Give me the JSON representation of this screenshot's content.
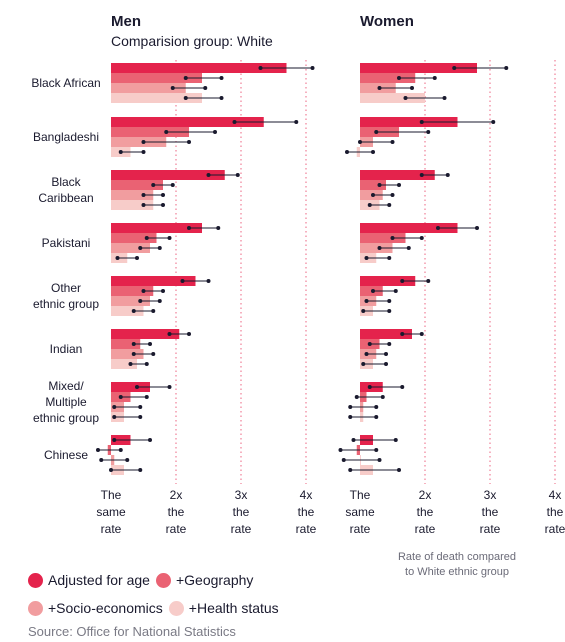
{
  "colors": {
    "adjusted_for_age": "#e4234c",
    "geography": "#ea6273",
    "socio_economics": "#f19d9f",
    "health_status": "#f7ccc9",
    "error_bar": "#1a1a2e",
    "gridline": "#e4234c"
  },
  "legend": {
    "items": [
      {
        "label": "Adjusted for age",
        "color": "#e4234c"
      },
      {
        "label": "+Geography",
        "color": "#ea6273"
      },
      {
        "label": "+Socio-economics",
        "color": "#f19d9f"
      },
      {
        "label": "+Health status",
        "color": "#f7ccc9"
      }
    ]
  },
  "footer": {
    "source": "Source: Office for National Statistics",
    "note_line1": "Rate of death compared",
    "note_line2": "to White ethnic group"
  },
  "chart_data": [
    {
      "type": "bar",
      "title": "Men",
      "subtitle": "Comparision group: White",
      "xlim": [
        1,
        4
      ],
      "ticks": [
        {
          "value": 1,
          "lines": [
            "The",
            "same",
            "rate"
          ]
        },
        {
          "value": 2,
          "lines": [
            "2x",
            "the",
            "rate"
          ]
        },
        {
          "value": 3,
          "lines": [
            "3x",
            "the",
            "rate"
          ]
        },
        {
          "value": 4,
          "lines": [
            "4x",
            "the",
            "rate"
          ]
        }
      ],
      "series_names": [
        "Adjusted for age",
        "+Geography",
        "+Socio-economics",
        "+Health status"
      ],
      "categories": [
        {
          "label": [
            "Black African"
          ],
          "series": [
            {
              "value": 3.7,
              "lo": 3.3,
              "hi": 4.1
            },
            {
              "value": 2.4,
              "lo": 2.15,
              "hi": 2.7
            },
            {
              "value": 2.15,
              "lo": 1.95,
              "hi": 2.45
            },
            {
              "value": 2.4,
              "lo": 2.15,
              "hi": 2.7
            }
          ]
        },
        {
          "label": [
            "Bangladeshi"
          ],
          "series": [
            {
              "value": 3.35,
              "lo": 2.9,
              "hi": 3.85
            },
            {
              "value": 2.2,
              "lo": 1.85,
              "hi": 2.6
            },
            {
              "value": 1.85,
              "lo": 1.5,
              "hi": 2.2
            },
            {
              "value": 1.3,
              "lo": 1.15,
              "hi": 1.5
            }
          ]
        },
        {
          "label": [
            "Black",
            "Caribbean"
          ],
          "series": [
            {
              "value": 2.75,
              "lo": 2.5,
              "hi": 2.95
            },
            {
              "value": 1.8,
              "lo": 1.65,
              "hi": 1.95
            },
            {
              "value": 1.65,
              "lo": 1.5,
              "hi": 1.8
            },
            {
              "value": 1.65,
              "lo": 1.5,
              "hi": 1.8
            }
          ]
        },
        {
          "label": [
            "Pakistani"
          ],
          "series": [
            {
              "value": 2.4,
              "lo": 2.2,
              "hi": 2.65
            },
            {
              "value": 1.7,
              "lo": 1.55,
              "hi": 1.9
            },
            {
              "value": 1.6,
              "lo": 1.45,
              "hi": 1.75
            },
            {
              "value": 1.25,
              "lo": 1.1,
              "hi": 1.4
            }
          ]
        },
        {
          "label": [
            "Other",
            "ethnic group"
          ],
          "series": [
            {
              "value": 2.3,
              "lo": 2.1,
              "hi": 2.5
            },
            {
              "value": 1.65,
              "lo": 1.5,
              "hi": 1.8
            },
            {
              "value": 1.6,
              "lo": 1.45,
              "hi": 1.75
            },
            {
              "value": 1.5,
              "lo": 1.35,
              "hi": 1.65
            }
          ]
        },
        {
          "label": [
            "Indian"
          ],
          "series": [
            {
              "value": 2.05,
              "lo": 1.9,
              "hi": 2.2
            },
            {
              "value": 1.45,
              "lo": 1.35,
              "hi": 1.6
            },
            {
              "value": 1.5,
              "lo": 1.35,
              "hi": 1.65
            },
            {
              "value": 1.4,
              "lo": 1.3,
              "hi": 1.55
            }
          ]
        },
        {
          "label": [
            "Mixed/",
            "Multiple",
            "ethnic group"
          ],
          "series": [
            {
              "value": 1.6,
              "lo": 1.4,
              "hi": 1.9
            },
            {
              "value": 1.3,
              "lo": 1.15,
              "hi": 1.55
            },
            {
              "value": 1.2,
              "lo": 1.05,
              "hi": 1.45
            },
            {
              "value": 1.2,
              "lo": 1.05,
              "hi": 1.45
            }
          ]
        },
        {
          "label": [
            "Chinese"
          ],
          "series": [
            {
              "value": 1.3,
              "lo": 1.05,
              "hi": 1.6
            },
            {
              "value": 0.95,
              "lo": 0.8,
              "hi": 1.15
            },
            {
              "value": 1.05,
              "lo": 0.85,
              "hi": 1.25
            },
            {
              "value": 1.2,
              "lo": 1.0,
              "hi": 1.45
            }
          ]
        }
      ]
    },
    {
      "type": "bar",
      "title": "Women",
      "subtitle": "",
      "xlim": [
        1,
        4
      ],
      "ticks": [
        {
          "value": 1,
          "lines": [
            "The",
            "same",
            "rate"
          ]
        },
        {
          "value": 2,
          "lines": [
            "2x",
            "the",
            "rate"
          ]
        },
        {
          "value": 3,
          "lines": [
            "3x",
            "the",
            "rate"
          ]
        },
        {
          "value": 4,
          "lines": [
            "4x",
            "the",
            "rate"
          ]
        }
      ],
      "series_names": [
        "Adjusted for age",
        "+Geography",
        "+Socio-economics",
        "+Health status"
      ],
      "categories": [
        {
          "label": [
            "Black African"
          ],
          "series": [
            {
              "value": 2.8,
              "lo": 2.45,
              "hi": 3.25
            },
            {
              "value": 1.85,
              "lo": 1.6,
              "hi": 2.15
            },
            {
              "value": 1.55,
              "lo": 1.3,
              "hi": 1.8
            },
            {
              "value": 2.0,
              "lo": 1.7,
              "hi": 2.3
            }
          ]
        },
        {
          "label": [
            "Bangladeshi"
          ],
          "series": [
            {
              "value": 2.5,
              "lo": 1.95,
              "hi": 3.05
            },
            {
              "value": 1.6,
              "lo": 1.25,
              "hi": 2.05
            },
            {
              "value": 1.2,
              "lo": 1.0,
              "hi": 1.5
            },
            {
              "value": 0.95,
              "lo": 0.8,
              "hi": 1.2
            }
          ]
        },
        {
          "label": [
            "Black",
            "Caribbean"
          ],
          "series": [
            {
              "value": 2.15,
              "lo": 1.95,
              "hi": 2.35
            },
            {
              "value": 1.4,
              "lo": 1.3,
              "hi": 1.6
            },
            {
              "value": 1.35,
              "lo": 1.2,
              "hi": 1.5
            },
            {
              "value": 1.3,
              "lo": 1.15,
              "hi": 1.45
            }
          ]
        },
        {
          "label": [
            "Pakistani"
          ],
          "series": [
            {
              "value": 2.5,
              "lo": 2.2,
              "hi": 2.8
            },
            {
              "value": 1.7,
              "lo": 1.5,
              "hi": 1.95
            },
            {
              "value": 1.5,
              "lo": 1.3,
              "hi": 1.75
            },
            {
              "value": 1.25,
              "lo": 1.1,
              "hi": 1.45
            }
          ]
        },
        {
          "label": [
            "Other",
            "ethnic group"
          ],
          "series": [
            {
              "value": 1.85,
              "lo": 1.65,
              "hi": 2.05
            },
            {
              "value": 1.35,
              "lo": 1.2,
              "hi": 1.55
            },
            {
              "value": 1.25,
              "lo": 1.1,
              "hi": 1.45
            },
            {
              "value": 1.2,
              "lo": 1.05,
              "hi": 1.45
            }
          ]
        },
        {
          "label": [
            "Indian"
          ],
          "series": [
            {
              "value": 1.8,
              "lo": 1.65,
              "hi": 1.95
            },
            {
              "value": 1.3,
              "lo": 1.15,
              "hi": 1.45
            },
            {
              "value": 1.25,
              "lo": 1.1,
              "hi": 1.4
            },
            {
              "value": 1.2,
              "lo": 1.05,
              "hi": 1.4
            }
          ]
        },
        {
          "label": [
            "Mixed/",
            "Multiple",
            "ethnic group"
          ],
          "series": [
            {
              "value": 1.35,
              "lo": 1.15,
              "hi": 1.65
            },
            {
              "value": 1.1,
              "lo": 0.95,
              "hi": 1.35
            },
            {
              "value": 1.05,
              "lo": 0.85,
              "hi": 1.25
            },
            {
              "value": 1.05,
              "lo": 0.85,
              "hi": 1.25
            }
          ]
        },
        {
          "label": [
            "Chinese"
          ],
          "series": [
            {
              "value": 1.2,
              "lo": 0.9,
              "hi": 1.55
            },
            {
              "value": 0.95,
              "lo": 0.7,
              "hi": 1.25
            },
            {
              "value": 1.0,
              "lo": 0.75,
              "hi": 1.3
            },
            {
              "value": 1.2,
              "lo": 0.85,
              "hi": 1.6
            }
          ]
        }
      ]
    }
  ]
}
